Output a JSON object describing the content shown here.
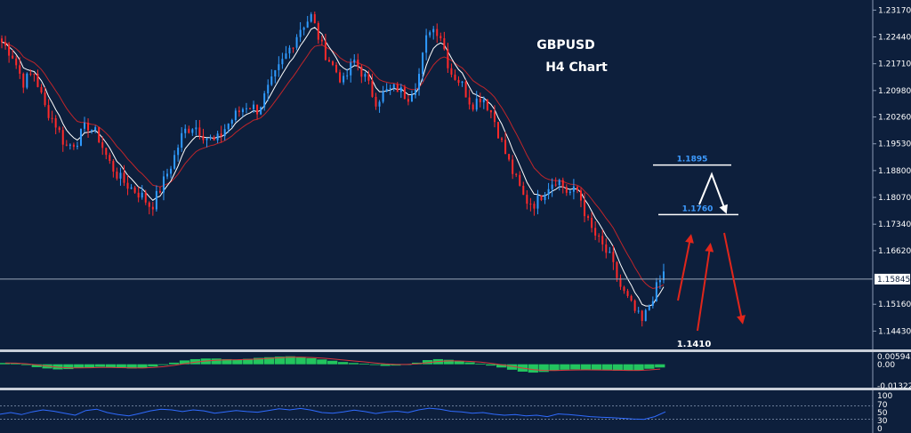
{
  "chart_data": {
    "type": "candlestick",
    "symbol": "GBPUSD",
    "timeframe": "H4 Chart",
    "title_line1": "GBPUSD",
    "title_line2": "H4 Chart",
    "price_axis": {
      "ylim": [
        1.141,
        1.233
      ],
      "ticks": [
        "1.23170",
        "1.22440",
        "1.21710",
        "1.20980",
        "1.20260",
        "1.19530",
        "1.18800",
        "1.18070",
        "1.17340",
        "1.16620",
        "1.15845",
        "1.15160",
        "1.14430"
      ]
    },
    "current_price": "1.15845",
    "current_price_value": 1.15845,
    "levels": [
      {
        "label": "1.1895",
        "value": 1.1895
      },
      {
        "label": "1.1760",
        "value": 1.176
      }
    ],
    "low_label": "1.1410",
    "low_value": 1.141,
    "close_path": [
      1.223,
      1.2195,
      1.212,
      1.215,
      1.2055,
      1.201,
      1.1945,
      1.196,
      1.2005,
      1.1975,
      1.1905,
      1.186,
      1.1835,
      1.1815,
      1.178,
      1.184,
      1.1905,
      1.1985,
      1.2005,
      1.1975,
      1.1955,
      1.2,
      1.2035,
      1.206,
      1.2045,
      1.2105,
      1.216,
      1.2215,
      1.227,
      1.23,
      1.2215,
      1.2165,
      1.212,
      1.218,
      1.2135,
      1.207,
      1.2095,
      1.2105,
      1.208,
      1.213,
      1.227,
      1.226,
      1.215,
      1.212,
      1.206,
      1.2085,
      1.203,
      1.194,
      1.1865,
      1.18,
      1.179,
      1.1835,
      1.186,
      1.182,
      1.1825,
      1.173,
      1.1685,
      1.164,
      1.156,
      1.151,
      1.1465,
      1.154,
      1.16
    ],
    "macd": {
      "tick_labels": [
        "0.005942",
        "0.00",
        "-0.01322"
      ],
      "range": [
        -0.0135,
        0.0065
      ],
      "histogram": [
        0.0008,
        0.0006,
        -0.0005,
        -0.0018,
        -0.0026,
        -0.0032,
        -0.003,
        -0.0024,
        -0.002,
        -0.0016,
        -0.002,
        -0.0024,
        -0.0026,
        -0.0024,
        -0.0014,
        -0.0004,
        0.001,
        0.0024,
        0.0032,
        0.0036,
        0.0036,
        0.0032,
        0.003,
        0.0034,
        0.004,
        0.0044,
        0.0048,
        0.005,
        0.0046,
        0.0038,
        0.003,
        0.0022,
        0.0014,
        0.0008,
        0.0004,
        -0.0004,
        -0.001,
        -0.0008,
        -0.0002,
        0.001,
        0.0026,
        0.0032,
        0.0028,
        0.002,
        0.0012,
        0.0004,
        -0.0008,
        -0.002,
        -0.0034,
        -0.0046,
        -0.0052,
        -0.0048,
        -0.004,
        -0.0034,
        -0.0032,
        -0.0034,
        -0.0036,
        -0.0038,
        -0.004,
        -0.004,
        -0.0038,
        -0.0028,
        -0.002
      ]
    },
    "rsi": {
      "tick_labels": [
        "100",
        "70",
        "50",
        "30",
        "0"
      ],
      "range": [
        0,
        100
      ],
      "levels": [
        70,
        30
      ],
      "values": [
        45,
        50,
        44,
        52,
        58,
        54,
        48,
        42,
        56,
        60,
        50,
        44,
        40,
        47,
        55,
        60,
        58,
        53,
        58,
        55,
        48,
        52,
        56,
        53,
        51,
        56,
        61,
        58,
        62,
        57,
        50,
        48,
        52,
        57,
        53,
        47,
        52,
        54,
        50,
        58,
        63,
        60,
        54,
        52,
        48,
        50,
        45,
        42,
        44,
        40,
        42,
        38,
        46,
        44,
        41,
        38,
        36,
        35,
        33,
        31,
        30,
        38,
        52
      ]
    }
  }
}
